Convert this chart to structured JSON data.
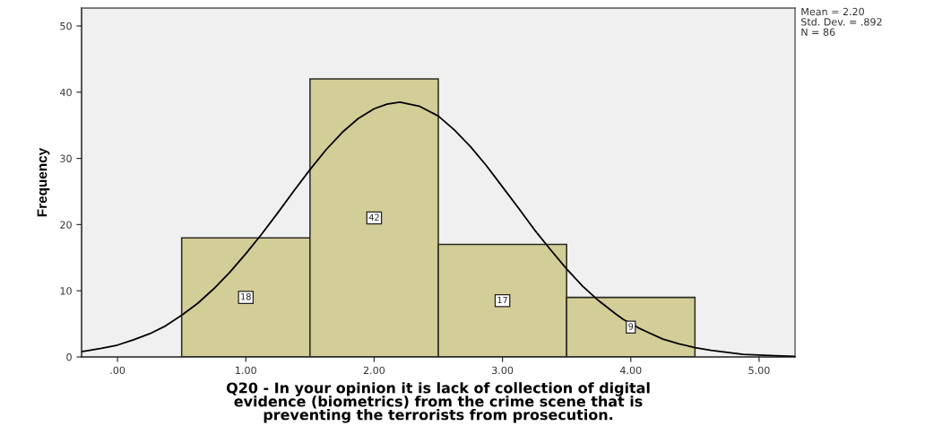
{
  "chart_data": {
    "type": "histogram",
    "xlabel": "Q20 - In your opinion it is lack of collection of digital\nevidence (biometrics) from the crime scene that is\npreventing the terrorists from prosecution.",
    "ylabel": "Frequency",
    "annotations": [
      "Mean = 2.20",
      "Std. Dev. = .892",
      "N = 86"
    ],
    "bins": [
      0.5,
      1.5,
      2.5,
      3.5,
      4.5
    ],
    "series": [
      {
        "color": "#d3cd97",
        "values": [
          18,
          42,
          17,
          9
        ],
        "value_labels": [
          "18",
          "42",
          "17",
          "9"
        ]
      },
      {
        "type": "line",
        "color": "#000000",
        "x": [
          -0.28,
          -0.125,
          0,
          0.125,
          0.25,
          0.375,
          0.5,
          0.625,
          0.75,
          0.875,
          1.0,
          1.125,
          1.25,
          1.375,
          1.5,
          1.625,
          1.75,
          1.875,
          2.0,
          2.1,
          2.2,
          2.35,
          2.5,
          2.625,
          2.75,
          2.875,
          3.0,
          3.125,
          3.25,
          3.375,
          3.5,
          3.625,
          3.75,
          3.875,
          3.94,
          4.06,
          4.125,
          4.25,
          4.375,
          4.5,
          4.625,
          4.75,
          4.875,
          5.0,
          5.125,
          5.28
        ],
        "values": [
          0.8,
          1.3,
          1.8,
          2.6,
          3.5,
          4.7,
          6.3,
          8.1,
          10.3,
          12.8,
          15.6,
          18.6,
          21.8,
          25.1,
          28.3,
          31.3,
          33.9,
          36.0,
          37.5,
          38.2,
          38.5,
          37.9,
          36.4,
          34.3,
          31.8,
          28.9,
          25.7,
          22.5,
          19.2,
          16.2,
          13.3,
          10.7,
          8.5,
          6.6,
          5.7,
          4.4,
          3.8,
          2.7,
          2.0,
          1.4,
          1.0,
          0.7,
          0.4,
          0.3,
          0.2,
          0.1
        ]
      }
    ],
    "xlim": [
      -0.28,
      5.28
    ],
    "ylim": [
      0,
      52.7
    ],
    "xticks": [
      {
        "value": 0,
        "label": ".00"
      },
      {
        "value": 1,
        "label": "1.00"
      },
      {
        "value": 2,
        "label": "2.00"
      },
      {
        "value": 3,
        "label": "3.00"
      },
      {
        "value": 4,
        "label": "4.00"
      },
      {
        "value": 5,
        "label": "5.00"
      }
    ],
    "yticks": [
      0,
      10,
      20,
      30,
      40,
      50
    ]
  }
}
